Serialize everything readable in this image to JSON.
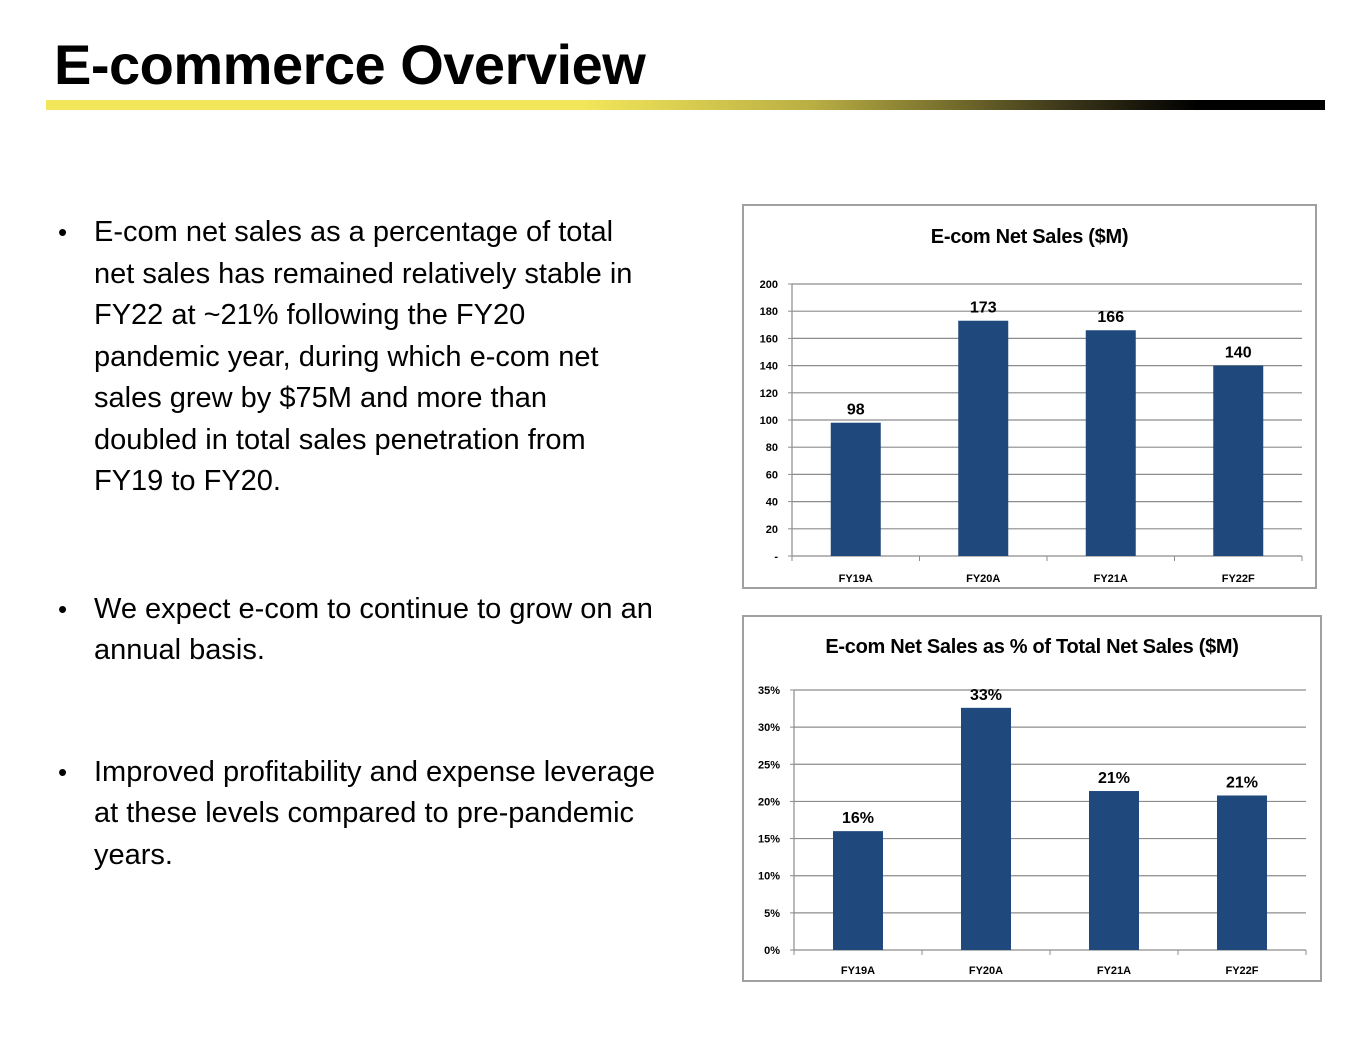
{
  "page": {
    "title": "E-commerce Overview",
    "bullet_symbol": "•",
    "bullets": [
      "E-com net sales as a percentage of total net sales has remained relatively stable in FY22 at ~21% following the FY20 pandemic year, during which e-com net sales grew by $75M and more than doubled in total sales penetration from FY19 to FY20.",
      "We expect e-com to continue to grow on an annual basis.",
      "Improved profitability and expense leverage at these levels compared to pre-pandemic years."
    ]
  },
  "colors": {
    "bar": "#1f497d",
    "grid": "#8c8c8c",
    "axis": "#8c8c8c"
  },
  "chart_data": [
    {
      "type": "bar",
      "title": "E-com Net Sales ($M)",
      "categories": [
        "FY19A",
        "FY20A",
        "FY21A",
        "FY22F"
      ],
      "values": [
        98,
        173,
        166,
        140
      ],
      "data_labels": [
        "98",
        "173",
        "166",
        "140"
      ],
      "ylim": [
        0,
        200
      ],
      "yticks": [
        0,
        20,
        40,
        60,
        80,
        100,
        120,
        140,
        160,
        180,
        200
      ],
      "ytick_labels": [
        "-",
        "20",
        "40",
        "60",
        "80",
        "100",
        "120",
        "140",
        "160",
        "180",
        "200"
      ],
      "xlabel": "",
      "ylabel": "",
      "grid": true,
      "legend": "none"
    },
    {
      "type": "bar",
      "title": "E-com Net Sales as % of Total Net Sales ($M)",
      "categories": [
        "FY19A",
        "FY20A",
        "FY21A",
        "FY22F"
      ],
      "values": [
        16,
        32.6,
        21.4,
        20.8
      ],
      "data_labels": [
        "16%",
        "33%",
        "21%",
        "21%"
      ],
      "ylim": [
        0,
        35
      ],
      "yticks": [
        0,
        5,
        10,
        15,
        20,
        25,
        30,
        35
      ],
      "ytick_labels": [
        "0%",
        "5%",
        "10%",
        "15%",
        "20%",
        "25%",
        "30%",
        "35%"
      ],
      "xlabel": "",
      "ylabel": "",
      "grid": true,
      "legend": "none"
    }
  ]
}
